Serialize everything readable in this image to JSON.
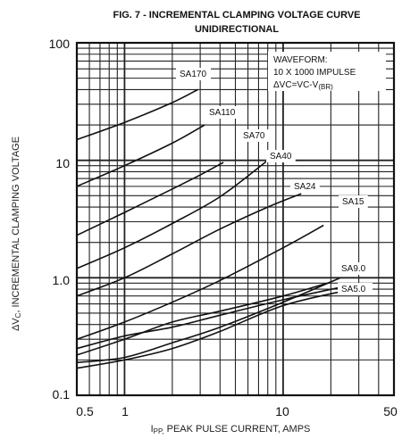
{
  "chart_data": {
    "type": "line",
    "title": "FIG. 7 - INCREMENTAL CLAMPING VOLTAGE CURVE",
    "subtitle": "UNIDIRECTIONAL",
    "xlabel": {
      "prefix": "I",
      "sub": "PP,",
      "rest": " PEAK PULSE CURRENT, AMPS"
    },
    "ylabel": {
      "prefix": "ΔV",
      "sub": "C",
      "rest": ", INCREMENTAL CLAMPING VOLTAGE"
    },
    "xscale": "log",
    "yscale": "log",
    "xlim": [
      0.5,
      50
    ],
    "ylim": [
      0.1,
      100
    ],
    "xticks": [
      "0.5",
      "1",
      "10",
      "50"
    ],
    "yticks": [
      "0.1",
      "1.0",
      "10",
      "100"
    ],
    "grid": true,
    "annotation": {
      "line1": "WAVEFORM:",
      "line2": "10 X 1000 IMPULSE",
      "line3": "ΔVC=VC-V",
      "line3_sub": "(BR)"
    },
    "series": [
      {
        "name": "SA170",
        "x": [
          0.5,
          1,
          2,
          2.9
        ],
        "y": [
          15,
          21,
          31,
          40
        ]
      },
      {
        "name": "SA110",
        "x": [
          0.5,
          1,
          2,
          3.2
        ],
        "y": [
          6,
          9,
          14,
          20
        ]
      },
      {
        "name": "SA70",
        "x": [
          0.5,
          1,
          2,
          3,
          4.2
        ],
        "y": [
          2.3,
          3.6,
          5.7,
          7.5,
          9.6
        ]
      },
      {
        "name": "SA40",
        "x": [
          0.5,
          1,
          2,
          4,
          8
        ],
        "y": [
          1.2,
          1.8,
          2.9,
          4.9,
          10
        ]
      },
      {
        "name": "SA24",
        "x": [
          0.5,
          1,
          2,
          4,
          8,
          13
        ],
        "y": [
          0.7,
          1.0,
          1.6,
          2.6,
          4.0,
          5.2
        ]
      },
      {
        "name": "SA15",
        "x": [
          0.5,
          1,
          2,
          4,
          10,
          18
        ],
        "y": [
          0.3,
          0.42,
          0.62,
          0.95,
          1.8,
          2.8
        ]
      },
      {
        "name": "SA9.0",
        "x": [
          0.5,
          1,
          2,
          4,
          10,
          23
        ],
        "y": [
          0.19,
          0.21,
          0.28,
          0.38,
          0.62,
          1.0
        ]
      },
      {
        "name": "SA5.0",
        "x": [
          0.5,
          1,
          2,
          4,
          10,
          25
        ],
        "y": [
          0.25,
          0.32,
          0.38,
          0.48,
          0.65,
          0.85
        ]
      },
      {
        "name": "",
        "x": [
          0.5,
          1,
          2,
          4,
          10,
          20
        ],
        "y": [
          0.22,
          0.3,
          0.42,
          0.52,
          0.7,
          0.92
        ]
      },
      {
        "name": "",
        "x": [
          0.5,
          1,
          2,
          4,
          10,
          25
        ],
        "y": [
          0.17,
          0.2,
          0.25,
          0.35,
          0.58,
          0.78
        ]
      }
    ]
  }
}
